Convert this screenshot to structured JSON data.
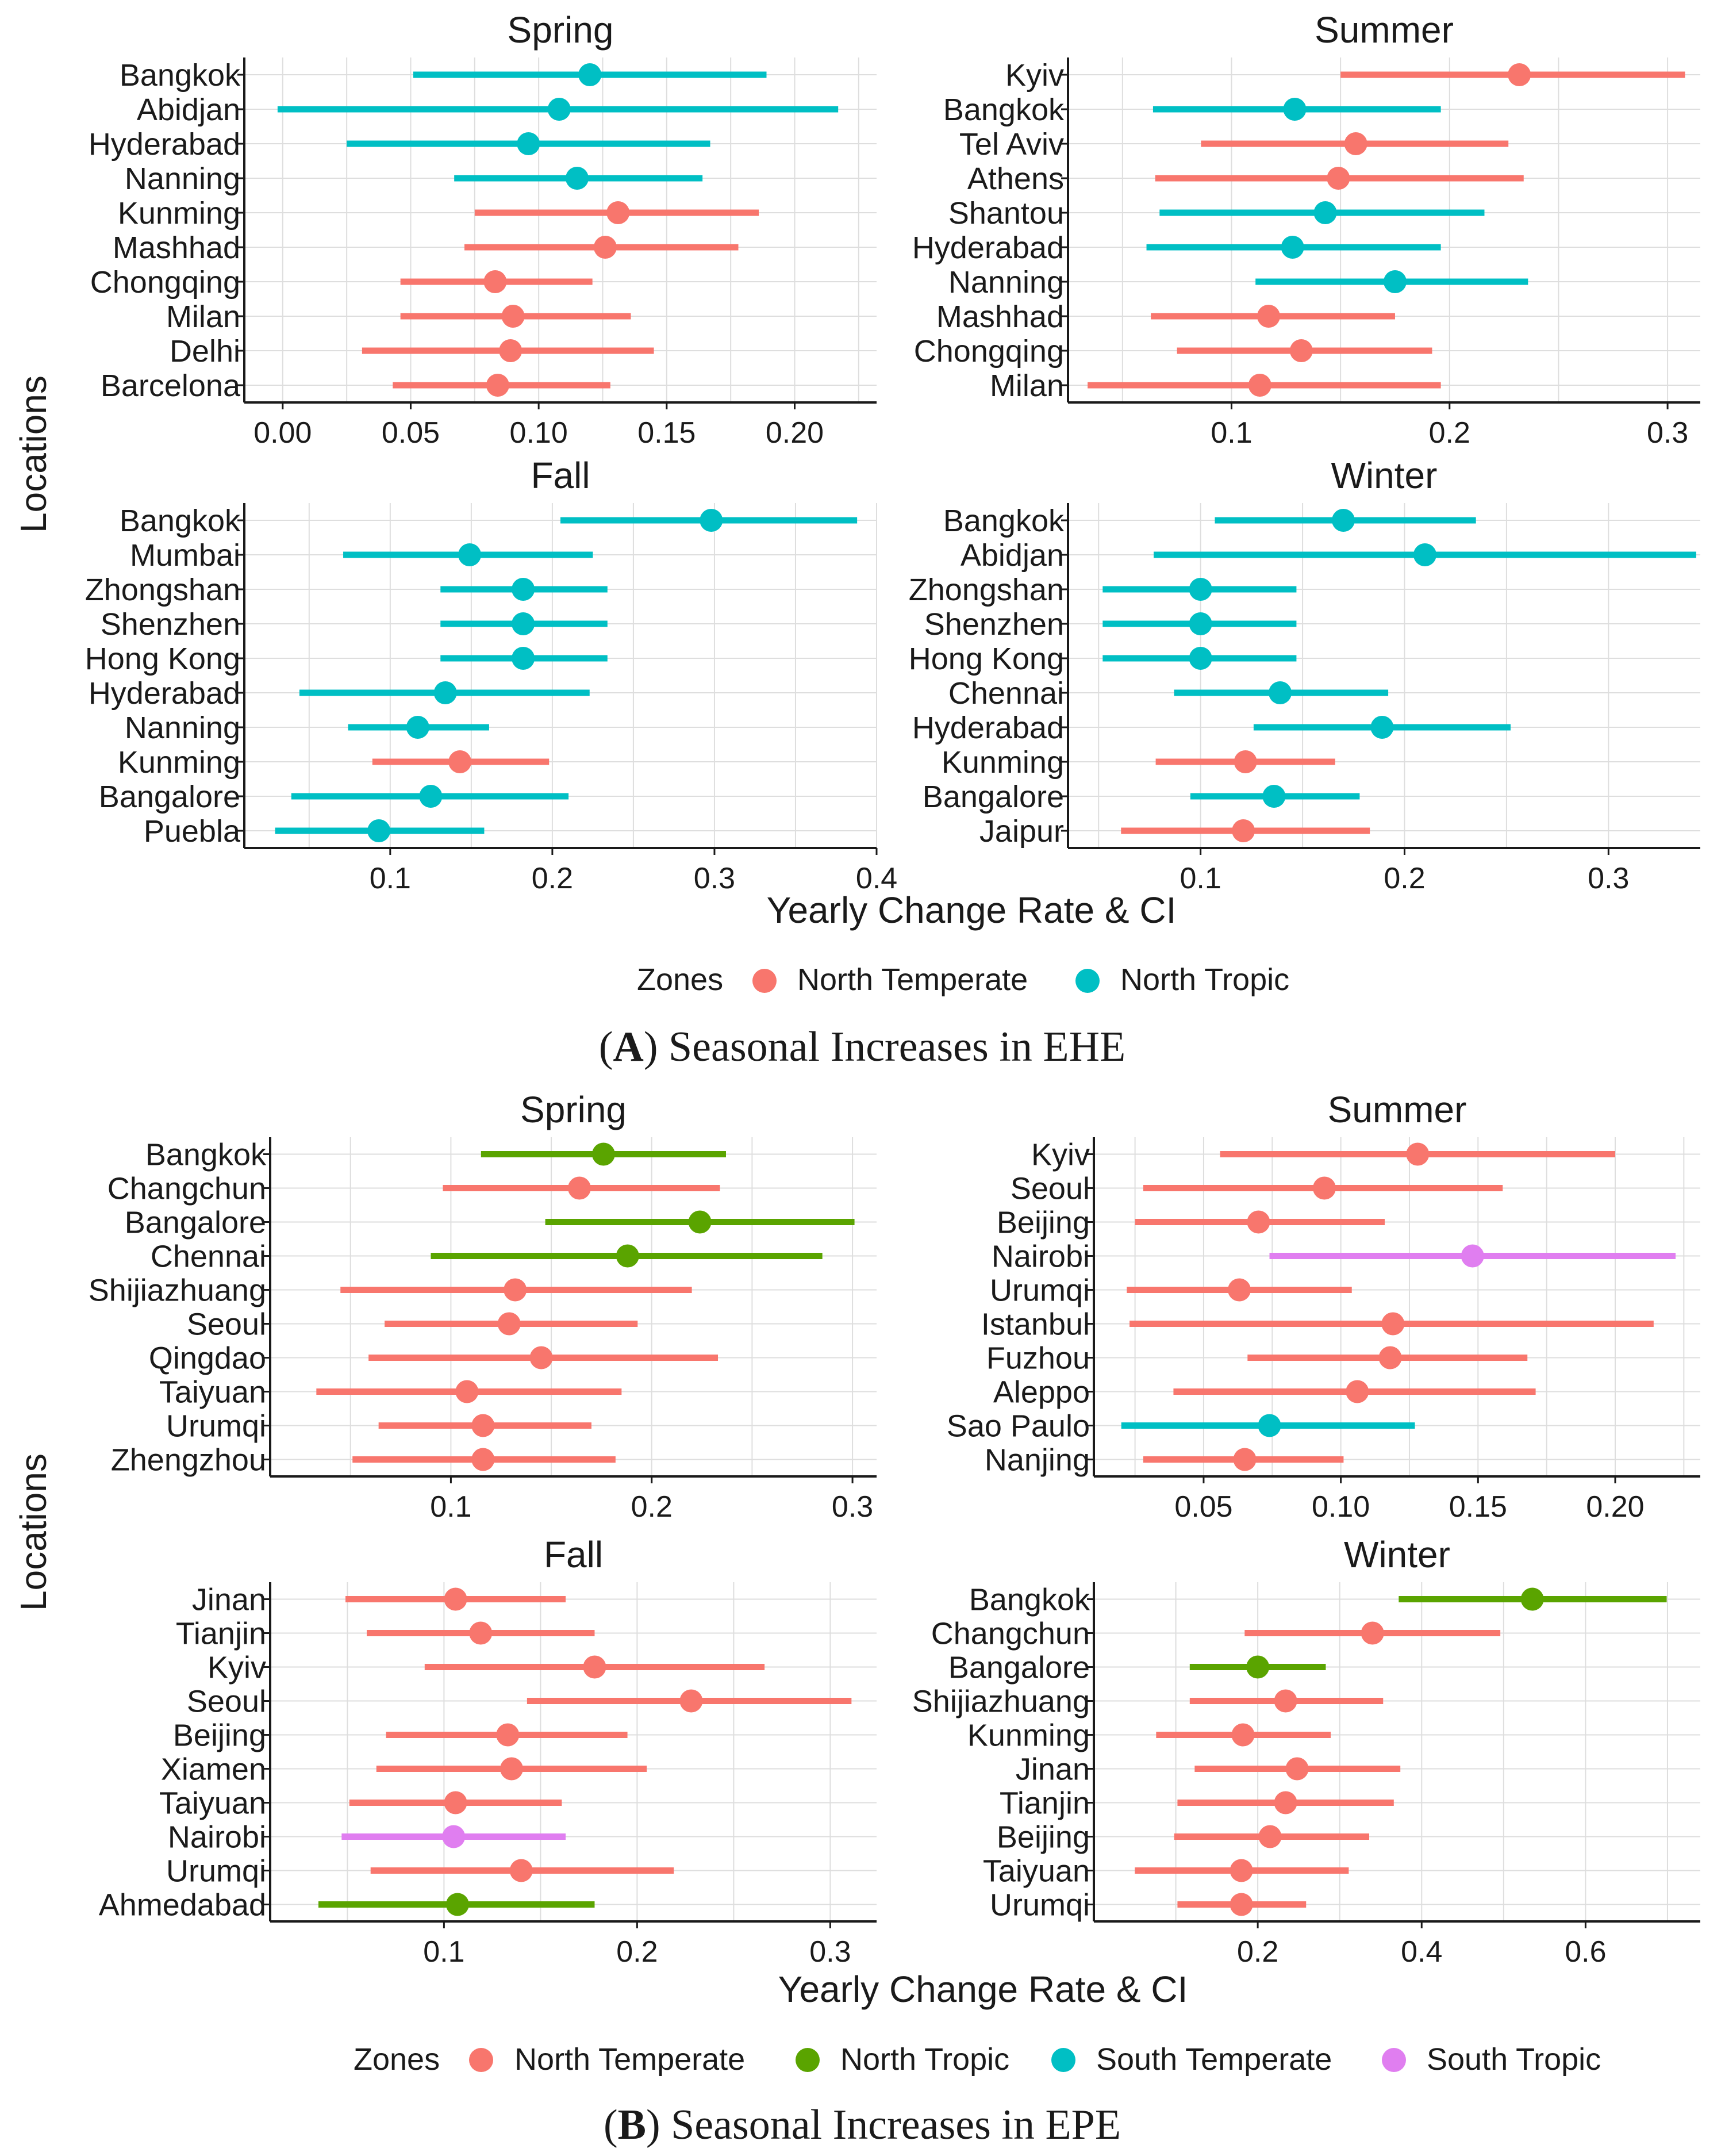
{
  "figure": {
    "colors": {
      "North Temperate": "#f8766d",
      "North Tropic A": "#00bfc4",
      "North Tropic B": "#5aa400",
      "South Temperate": "#00bfc4",
      "South Tropic": "#e07ef0"
    }
  },
  "panel_a": {
    "caption_letter": "A",
    "caption_text": " Seasonal Increases in EHE",
    "y_label": "Locations",
    "x_label": "Yearly Change Rate & CI",
    "legend_title": "Zones",
    "legend_items": [
      {
        "label": "North Temperate",
        "color": "#f8766d"
      },
      {
        "label": "North Tropic",
        "color": "#00bfc4"
      }
    ]
  },
  "panel_b": {
    "caption_letter": "B",
    "caption_text": " Seasonal Increases in EPE",
    "y_label": "Locations",
    "x_label": "Yearly Change Rate & CI",
    "legend_title": "Zones",
    "legend_items": [
      {
        "label": "North Temperate",
        "color": "#f8766d"
      },
      {
        "label": "North Tropic",
        "color": "#5aa400"
      },
      {
        "label": "South Temperate",
        "color": "#00bfc4"
      },
      {
        "label": "South Tropic",
        "color": "#e07ef0"
      }
    ]
  },
  "chart_data": [
    {
      "type": "scatter",
      "panel": "A",
      "title": "Spring",
      "xlim": [
        -0.015,
        0.232
      ],
      "ticks": [
        0.0,
        0.05,
        0.1,
        0.15,
        0.2
      ],
      "tick_labels": [
        "0.00",
        "0.05",
        "0.10",
        "0.15",
        "0.20"
      ],
      "points": [
        {
          "loc": "Bangkok",
          "zone": "North Tropic",
          "color": "#00bfc4",
          "est": 0.12,
          "lo": 0.051,
          "hi": 0.189
        },
        {
          "loc": "Abidjan",
          "zone": "North Tropic",
          "color": "#00bfc4",
          "est": 0.108,
          "lo": -0.002,
          "hi": 0.217
        },
        {
          "loc": "Hyderabad",
          "zone": "North Tropic",
          "color": "#00bfc4",
          "est": 0.096,
          "lo": 0.025,
          "hi": 0.167
        },
        {
          "loc": "Nanning",
          "zone": "North Tropic",
          "color": "#00bfc4",
          "est": 0.115,
          "lo": 0.067,
          "hi": 0.164
        },
        {
          "loc": "Kunming",
          "zone": "North Temperate",
          "color": "#f8766d",
          "est": 0.131,
          "lo": 0.075,
          "hi": 0.186
        },
        {
          "loc": "Mashhad",
          "zone": "North Temperate",
          "color": "#f8766d",
          "est": 0.126,
          "lo": 0.071,
          "hi": 0.178
        },
        {
          "loc": "Chongqing",
          "zone": "North Temperate",
          "color": "#f8766d",
          "est": 0.083,
          "lo": 0.046,
          "hi": 0.121
        },
        {
          "loc": "Milan",
          "zone": "North Temperate",
          "color": "#f8766d",
          "est": 0.09,
          "lo": 0.046,
          "hi": 0.136
        },
        {
          "loc": "Delhi",
          "zone": "North Temperate",
          "color": "#f8766d",
          "est": 0.089,
          "lo": 0.031,
          "hi": 0.145
        },
        {
          "loc": "Barcelona",
          "zone": "North Temperate",
          "color": "#f8766d",
          "est": 0.084,
          "lo": 0.043,
          "hi": 0.128
        }
      ]
    },
    {
      "type": "scatter",
      "panel": "A",
      "title": "Summer",
      "xlim": [
        0.025,
        0.315
      ],
      "ticks": [
        0.1,
        0.2,
        0.3
      ],
      "tick_labels": [
        "0.1",
        "0.2",
        "0.3"
      ],
      "points": [
        {
          "loc": "Kyiv",
          "zone": "North Temperate",
          "color": "#f8766d",
          "est": 0.232,
          "lo": 0.15,
          "hi": 0.308
        },
        {
          "loc": "Bangkok",
          "zone": "North Tropic",
          "color": "#00bfc4",
          "est": 0.129,
          "lo": 0.064,
          "hi": 0.196
        },
        {
          "loc": "Tel Aviv",
          "zone": "North Temperate",
          "color": "#f8766d",
          "est": 0.157,
          "lo": 0.086,
          "hi": 0.227
        },
        {
          "loc": "Athens",
          "zone": "North Temperate",
          "color": "#f8766d",
          "est": 0.149,
          "lo": 0.065,
          "hi": 0.234
        },
        {
          "loc": "Shantou",
          "zone": "North Tropic",
          "color": "#00bfc4",
          "est": 0.143,
          "lo": 0.067,
          "hi": 0.216
        },
        {
          "loc": "Hyderabad",
          "zone": "North Tropic",
          "color": "#00bfc4",
          "est": 0.128,
          "lo": 0.061,
          "hi": 0.196
        },
        {
          "loc": "Nanning",
          "zone": "North Tropic",
          "color": "#00bfc4",
          "est": 0.175,
          "lo": 0.111,
          "hi": 0.236
        },
        {
          "loc": "Mashhad",
          "zone": "North Temperate",
          "color": "#f8766d",
          "est": 0.117,
          "lo": 0.063,
          "hi": 0.175
        },
        {
          "loc": "Chongqing",
          "zone": "North Temperate",
          "color": "#f8766d",
          "est": 0.132,
          "lo": 0.075,
          "hi": 0.192
        },
        {
          "loc": "Milan",
          "zone": "North Temperate",
          "color": "#f8766d",
          "est": 0.113,
          "lo": 0.034,
          "hi": 0.196
        }
      ]
    },
    {
      "type": "scatter",
      "panel": "A",
      "title": "Fall",
      "xlim": [
        0.01,
        0.4
      ],
      "ticks": [
        0.1,
        0.2,
        0.3,
        0.4
      ],
      "tick_labels": [
        "0.1",
        "0.2",
        "0.3",
        "0.4"
      ],
      "points": [
        {
          "loc": "Bangkok",
          "zone": "North Tropic",
          "color": "#00bfc4",
          "est": 0.298,
          "lo": 0.205,
          "hi": 0.388
        },
        {
          "loc": "Mumbai",
          "zone": "North Tropic",
          "color": "#00bfc4",
          "est": 0.149,
          "lo": 0.071,
          "hi": 0.225
        },
        {
          "loc": "Zhongshan",
          "zone": "North Tropic",
          "color": "#00bfc4",
          "est": 0.182,
          "lo": 0.131,
          "hi": 0.234
        },
        {
          "loc": "Shenzhen",
          "zone": "North Tropic",
          "color": "#00bfc4",
          "est": 0.182,
          "lo": 0.131,
          "hi": 0.234
        },
        {
          "loc": "Hong Kong",
          "zone": "North Tropic",
          "color": "#00bfc4",
          "est": 0.182,
          "lo": 0.131,
          "hi": 0.234
        },
        {
          "loc": "Hyderabad",
          "zone": "North Tropic",
          "color": "#00bfc4",
          "est": 0.134,
          "lo": 0.044,
          "hi": 0.223
        },
        {
          "loc": "Nanning",
          "zone": "North Tropic",
          "color": "#00bfc4",
          "est": 0.117,
          "lo": 0.074,
          "hi": 0.161
        },
        {
          "loc": "Kunming",
          "zone": "North Temperate",
          "color": "#f8766d",
          "est": 0.143,
          "lo": 0.089,
          "hi": 0.198
        },
        {
          "loc": "Bangalore",
          "zone": "North Tropic",
          "color": "#00bfc4",
          "est": 0.125,
          "lo": 0.039,
          "hi": 0.21
        },
        {
          "loc": "Puebla",
          "zone": "North Tropic",
          "color": "#00bfc4",
          "est": 0.093,
          "lo": 0.029,
          "hi": 0.158
        }
      ]
    },
    {
      "type": "scatter",
      "panel": "A",
      "title": "Winter",
      "xlim": [
        0.035,
        0.345
      ],
      "ticks": [
        0.1,
        0.2,
        0.3
      ],
      "tick_labels": [
        "0.1",
        "0.2",
        "0.3"
      ],
      "points": [
        {
          "loc": "Bangkok",
          "zone": "North Tropic",
          "color": "#00bfc4",
          "est": 0.17,
          "lo": 0.107,
          "hi": 0.235
        },
        {
          "loc": "Abidjan",
          "zone": "North Tropic",
          "color": "#00bfc4",
          "est": 0.21,
          "lo": 0.077,
          "hi": 0.343
        },
        {
          "loc": "Zhongshan",
          "zone": "North Tropic",
          "color": "#00bfc4",
          "est": 0.1,
          "lo": 0.052,
          "hi": 0.147
        },
        {
          "loc": "Shenzhen",
          "zone": "North Tropic",
          "color": "#00bfc4",
          "est": 0.1,
          "lo": 0.052,
          "hi": 0.147
        },
        {
          "loc": "Hong Kong",
          "zone": "North Tropic",
          "color": "#00bfc4",
          "est": 0.1,
          "lo": 0.052,
          "hi": 0.147
        },
        {
          "loc": "Chennai",
          "zone": "North Tropic",
          "color": "#00bfc4",
          "est": 0.139,
          "lo": 0.087,
          "hi": 0.192
        },
        {
          "loc": "Hyderabad",
          "zone": "North Tropic",
          "color": "#00bfc4",
          "est": 0.189,
          "lo": 0.126,
          "hi": 0.252
        },
        {
          "loc": "Kunming",
          "zone": "North Temperate",
          "color": "#f8766d",
          "est": 0.122,
          "lo": 0.078,
          "hi": 0.166
        },
        {
          "loc": "Bangalore",
          "zone": "North Tropic",
          "color": "#00bfc4",
          "est": 0.136,
          "lo": 0.095,
          "hi": 0.178
        },
        {
          "loc": "Jaipur",
          "zone": "North Temperate",
          "color": "#f8766d",
          "est": 0.121,
          "lo": 0.061,
          "hi": 0.183
        }
      ]
    },
    {
      "type": "scatter",
      "panel": "B",
      "title": "Spring",
      "xlim": [
        0.01,
        0.312
      ],
      "ticks": [
        0.1,
        0.2,
        0.3
      ],
      "tick_labels": [
        "0.1",
        "0.2",
        "0.3"
      ],
      "points": [
        {
          "loc": "Bangkok",
          "zone": "North Tropic",
          "color": "#5aa400",
          "est": 0.176,
          "lo": 0.115,
          "hi": 0.237
        },
        {
          "loc": "Changchun",
          "zone": "North Temperate",
          "color": "#f8766d",
          "est": 0.164,
          "lo": 0.096,
          "hi": 0.234
        },
        {
          "loc": "Bangalore",
          "zone": "North Tropic",
          "color": "#5aa400",
          "est": 0.224,
          "lo": 0.147,
          "hi": 0.301
        },
        {
          "loc": "Chennai",
          "zone": "North Tropic",
          "color": "#5aa400",
          "est": 0.188,
          "lo": 0.09,
          "hi": 0.285
        },
        {
          "loc": "Shijiazhuang",
          "zone": "North Temperate",
          "color": "#f8766d",
          "est": 0.132,
          "lo": 0.045,
          "hi": 0.22
        },
        {
          "loc": "Seoul",
          "zone": "North Temperate",
          "color": "#f8766d",
          "est": 0.129,
          "lo": 0.067,
          "hi": 0.193
        },
        {
          "loc": "Qingdao",
          "zone": "North Temperate",
          "color": "#f8766d",
          "est": 0.145,
          "lo": 0.059,
          "hi": 0.233
        },
        {
          "loc": "Taiyuan",
          "zone": "North Temperate",
          "color": "#f8766d",
          "est": 0.108,
          "lo": 0.033,
          "hi": 0.185
        },
        {
          "loc": "Urumqi",
          "zone": "North Temperate",
          "color": "#f8766d",
          "est": 0.116,
          "lo": 0.064,
          "hi": 0.17
        },
        {
          "loc": "Zhengzhou",
          "zone": "North Temperate",
          "color": "#f8766d",
          "est": 0.116,
          "lo": 0.051,
          "hi": 0.182
        }
      ]
    },
    {
      "type": "scatter",
      "panel": "B",
      "title": "Summer",
      "xlim": [
        0.01,
        0.231
      ],
      "ticks": [
        0.05,
        0.1,
        0.15,
        0.2
      ],
      "tick_labels": [
        "0.05",
        "0.10",
        "0.15",
        "0.20"
      ],
      "points": [
        {
          "loc": "Kyiv",
          "zone": "North Temperate",
          "color": "#f8766d",
          "est": 0.128,
          "lo": 0.056,
          "hi": 0.2
        },
        {
          "loc": "Seoul",
          "zone": "North Temperate",
          "color": "#f8766d",
          "est": 0.094,
          "lo": 0.028,
          "hi": 0.159
        },
        {
          "loc": "Beijing",
          "zone": "North Temperate",
          "color": "#f8766d",
          "est": 0.07,
          "lo": 0.025,
          "hi": 0.116
        },
        {
          "loc": "Nairobi",
          "zone": "South Tropic",
          "color": "#e07ef0",
          "est": 0.148,
          "lo": 0.074,
          "hi": 0.222
        },
        {
          "loc": "Urumqi",
          "zone": "North Temperate",
          "color": "#f8766d",
          "est": 0.063,
          "lo": 0.022,
          "hi": 0.104
        },
        {
          "loc": "Istanbul",
          "zone": "North Temperate",
          "color": "#f8766d",
          "est": 0.119,
          "lo": 0.023,
          "hi": 0.214
        },
        {
          "loc": "Fuzhou",
          "zone": "North Temperate",
          "color": "#f8766d",
          "est": 0.118,
          "lo": 0.066,
          "hi": 0.168
        },
        {
          "loc": "Aleppo",
          "zone": "North Temperate",
          "color": "#f8766d",
          "est": 0.106,
          "lo": 0.039,
          "hi": 0.171
        },
        {
          "loc": "Sao Paulo",
          "zone": "South Temperate",
          "color": "#00bfc4",
          "est": 0.074,
          "lo": 0.02,
          "hi": 0.127
        },
        {
          "loc": "Nanjing",
          "zone": "North Temperate",
          "color": "#f8766d",
          "est": 0.065,
          "lo": 0.028,
          "hi": 0.101
        }
      ]
    },
    {
      "type": "scatter",
      "panel": "B",
      "title": "Fall",
      "xlim": [
        0.01,
        0.324
      ],
      "ticks": [
        0.1,
        0.2,
        0.3
      ],
      "tick_labels": [
        "0.1",
        "0.2",
        "0.3"
      ],
      "points": [
        {
          "loc": "Jinan",
          "zone": "North Temperate",
          "color": "#f8766d",
          "est": 0.106,
          "lo": 0.049,
          "hi": 0.163
        },
        {
          "loc": "Tianjin",
          "zone": "North Temperate",
          "color": "#f8766d",
          "est": 0.119,
          "lo": 0.06,
          "hi": 0.178
        },
        {
          "loc": "Kyiv",
          "zone": "North Temperate",
          "color": "#f8766d",
          "est": 0.178,
          "lo": 0.09,
          "hi": 0.266
        },
        {
          "loc": "Seoul",
          "zone": "North Temperate",
          "color": "#f8766d",
          "est": 0.228,
          "lo": 0.143,
          "hi": 0.311
        },
        {
          "loc": "Beijing",
          "zone": "North Temperate",
          "color": "#f8766d",
          "est": 0.133,
          "lo": 0.07,
          "hi": 0.195
        },
        {
          "loc": "Xiamen",
          "zone": "North Temperate",
          "color": "#f8766d",
          "est": 0.135,
          "lo": 0.065,
          "hi": 0.205
        },
        {
          "loc": "Taiyuan",
          "zone": "North Temperate",
          "color": "#f8766d",
          "est": 0.106,
          "lo": 0.051,
          "hi": 0.161
        },
        {
          "loc": "Nairobi",
          "zone": "South Tropic",
          "color": "#e07ef0",
          "est": 0.105,
          "lo": 0.047,
          "hi": 0.163
        },
        {
          "loc": "Urumqi",
          "zone": "North Temperate",
          "color": "#f8766d",
          "est": 0.14,
          "lo": 0.062,
          "hi": 0.219
        },
        {
          "loc": "Ahmedabad",
          "zone": "North Tropic",
          "color": "#5aa400",
          "est": 0.107,
          "lo": 0.035,
          "hi": 0.178
        }
      ]
    },
    {
      "type": "scatter",
      "panel": "B",
      "title": "Winter",
      "xlim": [
        0.0,
        0.74
      ],
      "ticks": [
        0.2,
        0.4,
        0.6
      ],
      "tick_labels": [
        "0.2",
        "0.4",
        "0.6"
      ],
      "points": [
        {
          "loc": "Bangkok",
          "zone": "North Tropic",
          "color": "#5aa400",
          "est": 0.535,
          "lo": 0.372,
          "hi": 0.699
        },
        {
          "loc": "Changchun",
          "zone": "North Temperate",
          "color": "#f8766d",
          "est": 0.34,
          "lo": 0.184,
          "hi": 0.496
        },
        {
          "loc": "Bangalore",
          "zone": "North Tropic",
          "color": "#5aa400",
          "est": 0.2,
          "lo": 0.117,
          "hi": 0.283
        },
        {
          "loc": "Shijiazhuang",
          "zone": "North Temperate",
          "color": "#f8766d",
          "est": 0.234,
          "lo": 0.117,
          "hi": 0.353
        },
        {
          "loc": "Kunming",
          "zone": "North Temperate",
          "color": "#f8766d",
          "est": 0.182,
          "lo": 0.076,
          "hi": 0.289
        },
        {
          "loc": "Jinan",
          "zone": "North Temperate",
          "color": "#f8766d",
          "est": 0.248,
          "lo": 0.123,
          "hi": 0.374
        },
        {
          "loc": "Tianjin",
          "zone": "North Temperate",
          "color": "#f8766d",
          "est": 0.234,
          "lo": 0.102,
          "hi": 0.366
        },
        {
          "loc": "Beijing",
          "zone": "North Temperate",
          "color": "#f8766d",
          "est": 0.215,
          "lo": 0.098,
          "hi": 0.336
        },
        {
          "loc": "Taiyuan",
          "zone": "North Temperate",
          "color": "#f8766d",
          "est": 0.18,
          "lo": 0.05,
          "hi": 0.311
        },
        {
          "loc": "Urumqi",
          "zone": "North Temperate",
          "color": "#f8766d",
          "est": 0.18,
          "lo": 0.102,
          "hi": 0.259
        }
      ]
    }
  ]
}
